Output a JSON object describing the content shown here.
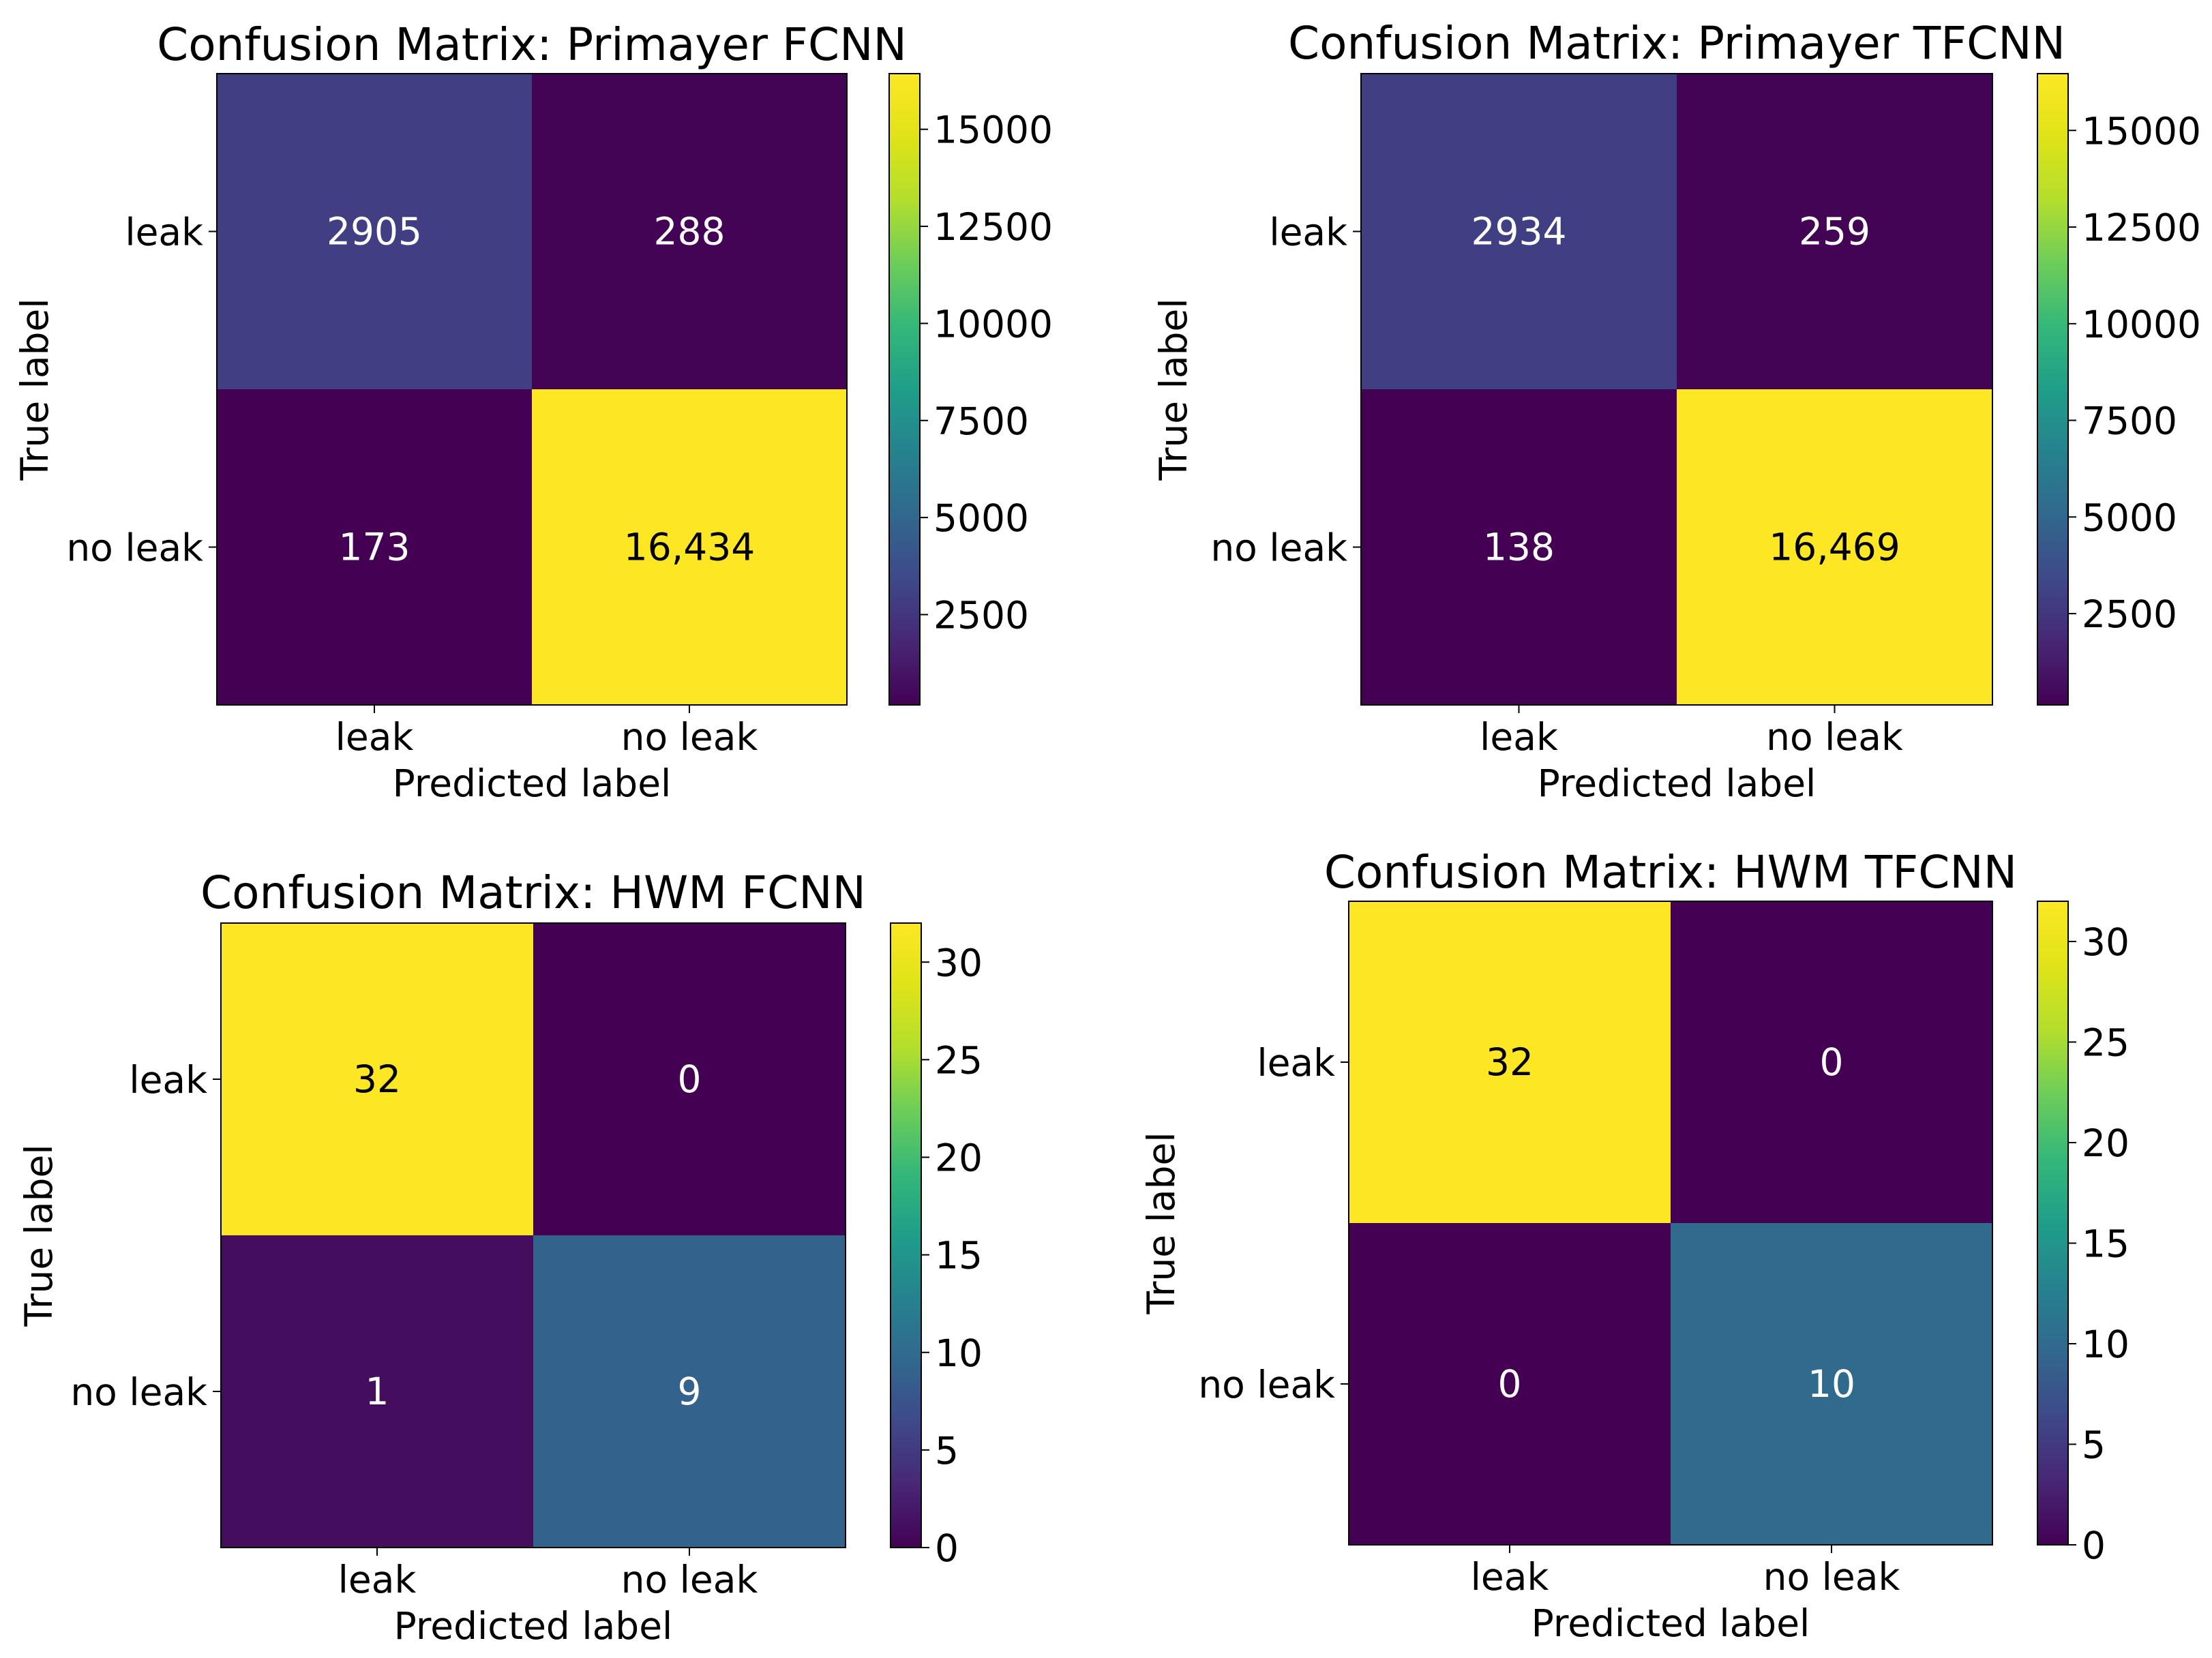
{
  "chart_data": [
    {
      "type": "heatmap",
      "title": "Confusion Matrix: Primayer FCNN",
      "xlabel": "Predicted label",
      "ylabel": "True label",
      "x_categories": [
        "leak",
        "no leak"
      ],
      "y_categories": [
        "leak",
        "no leak"
      ],
      "values": [
        [
          2905,
          288
        ],
        [
          173,
          16434
        ]
      ],
      "cell_labels": [
        [
          "2905",
          "288"
        ],
        [
          "173",
          "16,434"
        ]
      ],
      "colormap": "viridis",
      "colorbar_range": [
        173,
        16434
      ],
      "colorbar_ticks": [
        2500,
        5000,
        7500,
        10000,
        12500,
        15000
      ],
      "colorbar_tick_labels": [
        "2500",
        "5000",
        "7500",
        "10000",
        "12500",
        "15000"
      ]
    },
    {
      "type": "heatmap",
      "title": "Confusion Matrix: Primayer TFCNN",
      "xlabel": "Predicted label",
      "ylabel": "True label",
      "x_categories": [
        "leak",
        "no leak"
      ],
      "y_categories": [
        "leak",
        "no leak"
      ],
      "values": [
        [
          2934,
          259
        ],
        [
          138,
          16469
        ]
      ],
      "cell_labels": [
        [
          "2934",
          "259"
        ],
        [
          "138",
          "16,469"
        ]
      ],
      "colormap": "viridis",
      "colorbar_range": [
        138,
        16469
      ],
      "colorbar_ticks": [
        2500,
        5000,
        7500,
        10000,
        12500,
        15000
      ],
      "colorbar_tick_labels": [
        "2500",
        "5000",
        "7500",
        "10000",
        "12500",
        "15000"
      ]
    },
    {
      "type": "heatmap",
      "title": "Confusion Matrix: HWM FCNN",
      "xlabel": "Predicted label",
      "ylabel": "True label",
      "x_categories": [
        "leak",
        "no leak"
      ],
      "y_categories": [
        "leak",
        "no leak"
      ],
      "values": [
        [
          32,
          0
        ],
        [
          1,
          9
        ]
      ],
      "cell_labels": [
        [
          "32",
          "0"
        ],
        [
          "1",
          "9"
        ]
      ],
      "colormap": "viridis",
      "colorbar_range": [
        0,
        32
      ],
      "colorbar_ticks": [
        0,
        5,
        10,
        15,
        20,
        25,
        30
      ],
      "colorbar_tick_labels": [
        "0",
        "5",
        "10",
        "15",
        "20",
        "25",
        "30"
      ]
    },
    {
      "type": "heatmap",
      "title": "Confusion Matrix: HWM TFCNN",
      "xlabel": "Predicted label",
      "ylabel": "True label",
      "x_categories": [
        "leak",
        "no leak"
      ],
      "y_categories": [
        "leak",
        "no leak"
      ],
      "values": [
        [
          32,
          0
        ],
        [
          0,
          10
        ]
      ],
      "cell_labels": [
        [
          "32",
          "0"
        ],
        [
          "0",
          "10"
        ]
      ],
      "colormap": "viridis",
      "colorbar_range": [
        0,
        32
      ],
      "colorbar_ticks": [
        0,
        5,
        10,
        15,
        20,
        25,
        30
      ],
      "colorbar_tick_labels": [
        "0",
        "5",
        "10",
        "15",
        "20",
        "25",
        "30"
      ]
    }
  ]
}
